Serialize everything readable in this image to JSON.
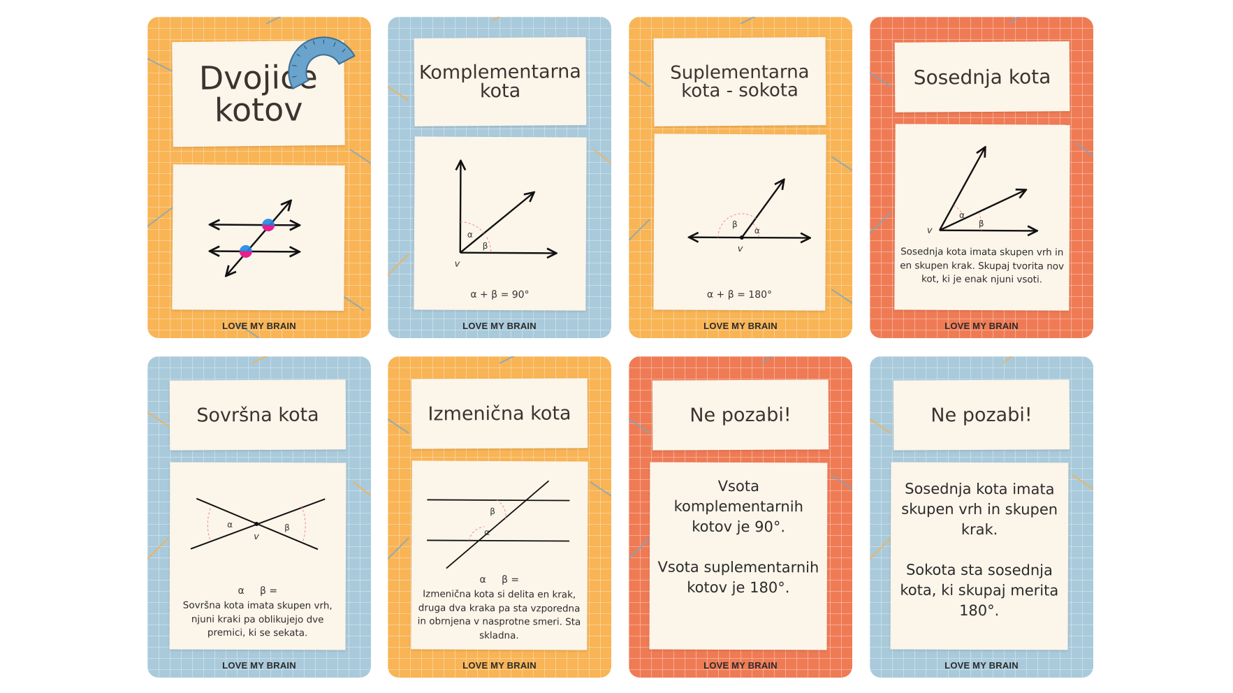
{
  "brand": "LOVE MY BRAIN",
  "colors": {
    "orange": "#f8b455",
    "blue": "#a9cadb",
    "red": "#ef7b55",
    "paper": "#fcf5ea",
    "pink": "#e91e8c",
    "cyan": "#1e88e5",
    "protractor": "#6aa3cc"
  },
  "cards": [
    {
      "title_line1": "Dvojice",
      "title_line2": "kotov",
      "icon": "protractor-icon"
    },
    {
      "title_line1": "Komplementarna",
      "title_line2": "kota",
      "label_alpha": "α",
      "label_beta": "β",
      "label_v": "v",
      "formula": "α  + β = 90°"
    },
    {
      "title_line1": "Suplementarna",
      "title_line2": "kota - sokota",
      "label_alpha": "α",
      "label_beta": "β",
      "label_v": "v",
      "formula": "α  + β = 180°"
    },
    {
      "title": "Sosednja kota",
      "label_alpha": "α",
      "label_beta": "β",
      "label_v": "v",
      "desc_line1": "Sosednja kota imata skupen vrh in",
      "desc_line2": "en skupen krak. Skupaj tvorita nov",
      "desc_line3": "kot, ki je enak njuni vsoti."
    },
    {
      "title": "Sovršna kota",
      "label_alpha": "α",
      "label_beta": "β",
      "label_v": "v",
      "formula": "α     β =",
      "desc_line1": "Sovršna kota imata skupen vrh,",
      "desc_line2": "njuni kraki pa oblikujejo dve",
      "desc_line3": "premici, ki se sekata."
    },
    {
      "title": "Izmenična kota",
      "label_alpha": "α",
      "label_beta": "β",
      "formula": "α     β =",
      "desc_line1": "Izmenična kota si delita en krak,",
      "desc_line2": "druga dva kraka pa sta vzporedna",
      "desc_line3": "in obrnjena v nasprotne smeri. Sta",
      "desc_line4": "skladna."
    },
    {
      "title": "Ne pozabi!",
      "line1": "Vsota",
      "line2": "komplementarnih",
      "line3": "kotov je 90°.",
      "line4": "Vsota suplementarnih",
      "line5": "kotov je 180°."
    },
    {
      "title": "Ne pozabi!",
      "line1": "Sosednja kota imata",
      "line2": "skupen vrh in skupen",
      "line3": "krak.",
      "line4": "Sokota sta sosednja",
      "line5": "kota, ki skupaj merita",
      "line6": "180°."
    }
  ]
}
